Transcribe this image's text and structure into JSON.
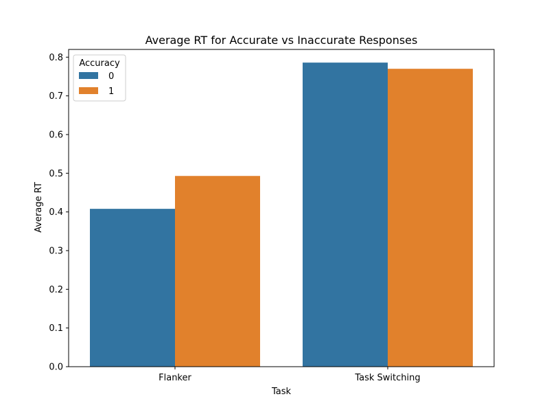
{
  "chart_data": {
    "type": "bar",
    "title": "Average RT for Accurate vs Inaccurate Responses",
    "xlabel": "Task",
    "ylabel": "Average RT",
    "categories": [
      "Flanker",
      "Task Switching"
    ],
    "series": [
      {
        "name": "0",
        "values": [
          0.408,
          0.786
        ],
        "color": "#3274a1"
      },
      {
        "name": "1",
        "values": [
          0.493,
          0.77
        ],
        "color": "#e1812c"
      }
    ],
    "ylim": [
      0,
      0.82
    ],
    "yticks": [
      0.0,
      0.1,
      0.2,
      0.3,
      0.4,
      0.5,
      0.6,
      0.7,
      0.8
    ],
    "ytick_labels": [
      "0.0",
      "0.1",
      "0.2",
      "0.3",
      "0.4",
      "0.5",
      "0.6",
      "0.7",
      "0.8"
    ],
    "legend": {
      "title": "Accuracy",
      "position": "top-left"
    },
    "grid": false
  }
}
